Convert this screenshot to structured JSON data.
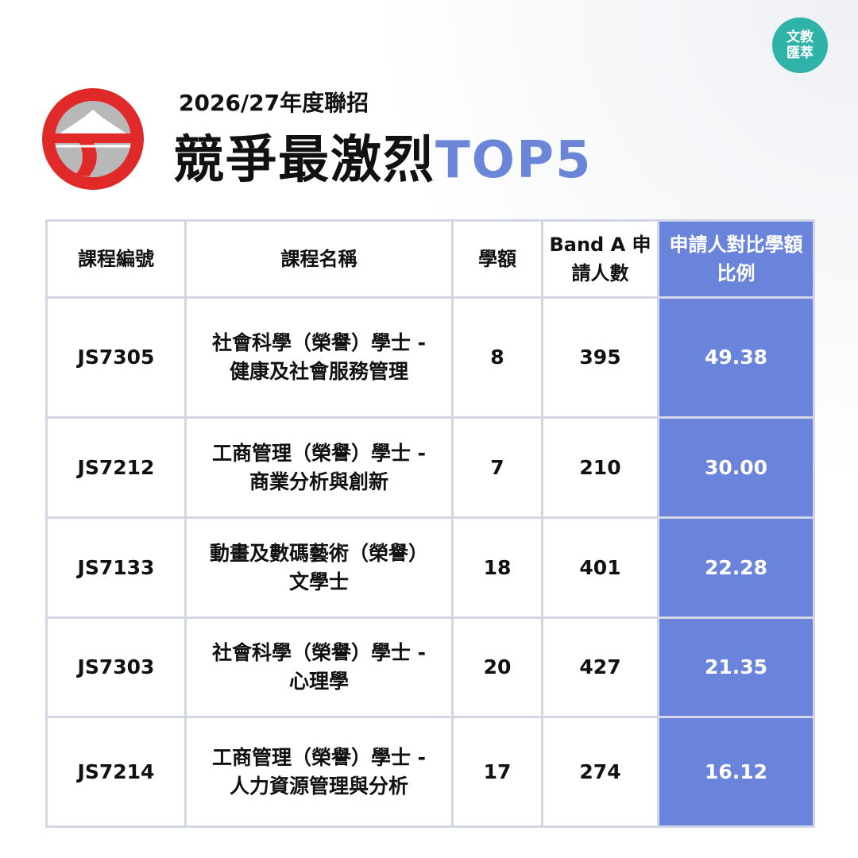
{
  "header": {
    "subtitle": "2026/27年度聯招",
    "title": "競爭最激烈",
    "title_accent": "TOP5"
  },
  "badge": {
    "lines": [
      "文教",
      "匯萃"
    ]
  },
  "table": {
    "columns": [
      "課程編號",
      "課程名稱",
      "學額",
      "Band A 申請人數",
      "申請人對比學額比例"
    ],
    "rows": [
      [
        "JS7305",
        [
          "社會科學（榮譽）學士 -",
          "健康及社會服務管理"
        ],
        "8",
        "395",
        "49.38"
      ],
      [
        "JS7212",
        [
          "工商管理（榮譽）學士 -",
          "商業分析與創新"
        ],
        "7",
        "210",
        "30.00"
      ],
      [
        "JS7133",
        [
          "動畫及數碼藝術（榮譽）",
          "文學士"
        ],
        "18",
        "401",
        "22.28"
      ],
      [
        "JS7303",
        [
          "社會科學（榮譽）學士 -",
          "心理學"
        ],
        "20",
        "427",
        "21.35"
      ],
      [
        "JS7214",
        [
          "工商管理（榮譽）學士 -",
          "人力資源管理與分析"
        ],
        "17",
        "274",
        "16.12"
      ]
    ]
  }
}
